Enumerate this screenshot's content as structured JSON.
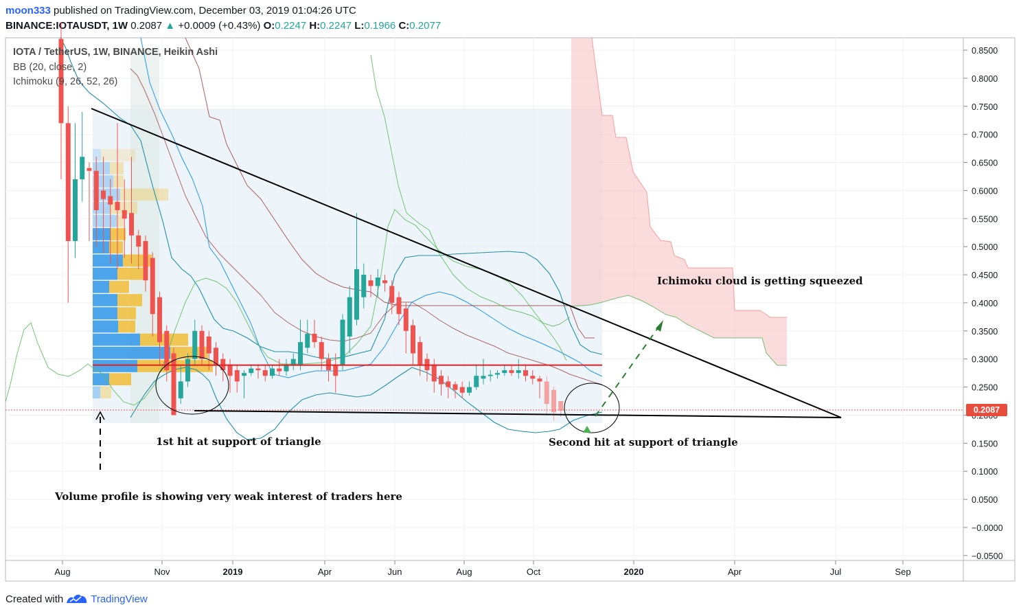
{
  "header": {
    "author": "moon333",
    "published": "published on TradingView.com, December 03, 2019 01:04:26 UTC",
    "symbol": "BINANCE:IOTAUSDT, 1W",
    "last": "0.2087",
    "change_arrow": "▲",
    "change": "+0.0009 (+0.43%)",
    "o_label": "O:",
    "o": "0.2247",
    "h_label": "H:",
    "h": "0.2247",
    "l_label": "L:",
    "l": "0.1966",
    "c_label": "C:",
    "c": "0.2077"
  },
  "legend": {
    "line1": "IOTA / TetherUS, 1W, BINANCE, Heikin Ashi",
    "line2": "BB (20, close, 2)",
    "line3": "Ichimoku (9, 26, 52, 26)"
  },
  "annotations": {
    "first_hit": "1st hit at support of triangle",
    "second_hit": "Second hit at support of triangle",
    "volume_profile": "Volume profile is showing very weak interest of traders here",
    "ichimoku": "Ichimoku cloud is getting squeezed"
  },
  "price_label": "0.2087",
  "footer": {
    "created": "Created with",
    "brand": "TradingView",
    "logo_icon": "tradingview-logo-icon"
  },
  "colors": {
    "up": "#26a69a",
    "down": "#ef5350",
    "bb": "#1e8fa8",
    "cloud": "#f8bfbf",
    "kijun": "#8b1a1a",
    "lagging": "#5cb85c",
    "tenkan": "#2196f3",
    "support": "#e02020"
  },
  "chart_data": {
    "type": "candlestick",
    "title": "IOTA / TetherUS, 1W, BINANCE, Heikin Ashi",
    "x_ticks": [
      "Aug",
      "Nov",
      "2019",
      "Apr",
      "Jun",
      "Aug",
      "Oct",
      "2020",
      "Apr",
      "Jul",
      "Sep"
    ],
    "y_ticks": [
      "0.8500",
      "0.8000",
      "0.7500",
      "0.7000",
      "0.6500",
      "0.6000",
      "0.5500",
      "0.5000",
      "0.4500",
      "0.4000",
      "0.3500",
      "0.3000",
      "0.2500",
      "0.2000",
      "0.1500",
      "0.1000",
      "0.0500",
      "−0.0000",
      "−0.0500"
    ],
    "ylim": [
      -0.055,
      0.87
    ],
    "candles": [
      {
        "o": 0.87,
        "c": 0.72,
        "h": 0.9,
        "l": 0.62
      },
      {
        "o": 0.72,
        "c": 0.51,
        "h": 0.75,
        "l": 0.4
      },
      {
        "o": 0.51,
        "c": 0.62,
        "h": 0.72,
        "l": 0.48
      },
      {
        "o": 0.62,
        "c": 0.66,
        "h": 0.74,
        "l": 0.58
      },
      {
        "o": 0.64,
        "c": 0.635,
        "h": 0.65,
        "l": 0.51
      },
      {
        "o": 0.635,
        "c": 0.565,
        "h": 0.66,
        "l": 0.5
      },
      {
        "o": 0.6,
        "c": 0.585,
        "h": 0.66,
        "l": 0.49
      },
      {
        "o": 0.59,
        "c": 0.575,
        "h": 0.62,
        "l": 0.47
      },
      {
        "o": 0.58,
        "c": 0.565,
        "h": 0.72,
        "l": 0.46
      },
      {
        "o": 0.565,
        "c": 0.55,
        "h": 0.62,
        "l": 0.48
      },
      {
        "o": 0.56,
        "c": 0.52,
        "h": 0.66,
        "l": 0.47
      },
      {
        "o": 0.52,
        "c": 0.5,
        "h": 0.53,
        "l": 0.46
      },
      {
        "o": 0.51,
        "c": 0.44,
        "h": 0.52,
        "l": 0.42
      },
      {
        "o": 0.48,
        "c": 0.38,
        "h": 0.49,
        "l": 0.34
      },
      {
        "o": 0.41,
        "c": 0.33,
        "h": 0.42,
        "l": 0.29
      },
      {
        "o": 0.35,
        "c": 0.28,
        "h": 0.36,
        "l": 0.26
      },
      {
        "o": 0.31,
        "c": 0.2,
        "h": 0.32,
        "l": 0.2
      },
      {
        "o": 0.23,
        "c": 0.26,
        "h": 0.29,
        "l": 0.22
      },
      {
        "o": 0.26,
        "c": 0.3,
        "h": 0.31,
        "l": 0.25
      },
      {
        "o": 0.3,
        "c": 0.35,
        "h": 0.37,
        "l": 0.29
      },
      {
        "o": 0.35,
        "c": 0.3,
        "h": 0.36,
        "l": 0.29
      },
      {
        "o": 0.34,
        "c": 0.31,
        "h": 0.35,
        "l": 0.28
      },
      {
        "o": 0.32,
        "c": 0.29,
        "h": 0.33,
        "l": 0.27
      },
      {
        "o": 0.3,
        "c": 0.28,
        "h": 0.31,
        "l": 0.26
      },
      {
        "o": 0.29,
        "c": 0.27,
        "h": 0.3,
        "l": 0.24
      },
      {
        "o": 0.28,
        "c": 0.26,
        "h": 0.29,
        "l": 0.24
      },
      {
        "o": 0.27,
        "c": 0.275,
        "h": 0.28,
        "l": 0.23
      },
      {
        "o": 0.275,
        "c": 0.283,
        "h": 0.29,
        "l": 0.27
      },
      {
        "o": 0.283,
        "c": 0.28,
        "h": 0.29,
        "l": 0.265
      },
      {
        "o": 0.28,
        "c": 0.27,
        "h": 0.29,
        "l": 0.26
      },
      {
        "o": 0.27,
        "c": 0.283,
        "h": 0.29,
        "l": 0.265
      },
      {
        "o": 0.283,
        "c": 0.278,
        "h": 0.3,
        "l": 0.27
      },
      {
        "o": 0.278,
        "c": 0.29,
        "h": 0.3,
        "l": 0.27
      },
      {
        "o": 0.29,
        "c": 0.3,
        "h": 0.31,
        "l": 0.28
      },
      {
        "o": 0.29,
        "c": 0.33,
        "h": 0.37,
        "l": 0.28
      },
      {
        "o": 0.32,
        "c": 0.345,
        "h": 0.37,
        "l": 0.31
      },
      {
        "o": 0.345,
        "c": 0.33,
        "h": 0.37,
        "l": 0.32
      },
      {
        "o": 0.33,
        "c": 0.3,
        "h": 0.34,
        "l": 0.28
      },
      {
        "o": 0.3,
        "c": 0.28,
        "h": 0.31,
        "l": 0.26
      },
      {
        "o": 0.29,
        "c": 0.27,
        "h": 0.31,
        "l": 0.24
      },
      {
        "o": 0.29,
        "c": 0.37,
        "h": 0.38,
        "l": 0.28
      },
      {
        "o": 0.34,
        "c": 0.41,
        "h": 0.43,
        "l": 0.31
      },
      {
        "o": 0.37,
        "c": 0.46,
        "h": 0.56,
        "l": 0.36
      },
      {
        "o": 0.41,
        "c": 0.45,
        "h": 0.47,
        "l": 0.39
      },
      {
        "o": 0.44,
        "c": 0.43,
        "h": 0.45,
        "l": 0.41
      },
      {
        "o": 0.43,
        "c": 0.445,
        "h": 0.46,
        "l": 0.41
      },
      {
        "o": 0.44,
        "c": 0.435,
        "h": 0.45,
        "l": 0.42
      },
      {
        "o": 0.43,
        "c": 0.4,
        "h": 0.44,
        "l": 0.38
      },
      {
        "o": 0.41,
        "c": 0.38,
        "h": 0.42,
        "l": 0.36
      },
      {
        "o": 0.39,
        "c": 0.35,
        "h": 0.4,
        "l": 0.31
      },
      {
        "o": 0.36,
        "c": 0.31,
        "h": 0.37,
        "l": 0.29
      },
      {
        "o": 0.33,
        "c": 0.29,
        "h": 0.34,
        "l": 0.27
      },
      {
        "o": 0.3,
        "c": 0.28,
        "h": 0.31,
        "l": 0.26
      },
      {
        "o": 0.29,
        "c": 0.26,
        "h": 0.3,
        "l": 0.24
      },
      {
        "o": 0.27,
        "c": 0.255,
        "h": 0.28,
        "l": 0.235
      },
      {
        "o": 0.26,
        "c": 0.25,
        "h": 0.27,
        "l": 0.23
      },
      {
        "o": 0.255,
        "c": 0.245,
        "h": 0.26,
        "l": 0.23
      },
      {
        "o": 0.25,
        "c": 0.24,
        "h": 0.26,
        "l": 0.23
      },
      {
        "o": 0.24,
        "c": 0.25,
        "h": 0.26,
        "l": 0.235
      },
      {
        "o": 0.25,
        "c": 0.27,
        "h": 0.29,
        "l": 0.245
      },
      {
        "o": 0.265,
        "c": 0.27,
        "h": 0.3,
        "l": 0.255
      },
      {
        "o": 0.27,
        "c": 0.272,
        "h": 0.28,
        "l": 0.26
      },
      {
        "o": 0.272,
        "c": 0.275,
        "h": 0.28,
        "l": 0.265
      },
      {
        "o": 0.275,
        "c": 0.28,
        "h": 0.29,
        "l": 0.27
      },
      {
        "o": 0.28,
        "c": 0.275,
        "h": 0.29,
        "l": 0.27
      },
      {
        "o": 0.275,
        "c": 0.28,
        "h": 0.3,
        "l": 0.265
      },
      {
        "o": 0.28,
        "c": 0.27,
        "h": 0.29,
        "l": 0.26
      },
      {
        "o": 0.27,
        "c": 0.265,
        "h": 0.28,
        "l": 0.255
      },
      {
        "o": 0.265,
        "c": 0.26,
        "h": 0.27,
        "l": 0.23
      },
      {
        "o": 0.26,
        "c": 0.22,
        "h": 0.27,
        "l": 0.2
      },
      {
        "o": 0.245,
        "c": 0.205,
        "h": 0.25,
        "l": 0.19
      },
      {
        "o": 0.225,
        "c": 0.208,
        "h": 0.225,
        "l": 0.197
      }
    ],
    "support_level": 0.289,
    "current_price": 0.2087
  }
}
